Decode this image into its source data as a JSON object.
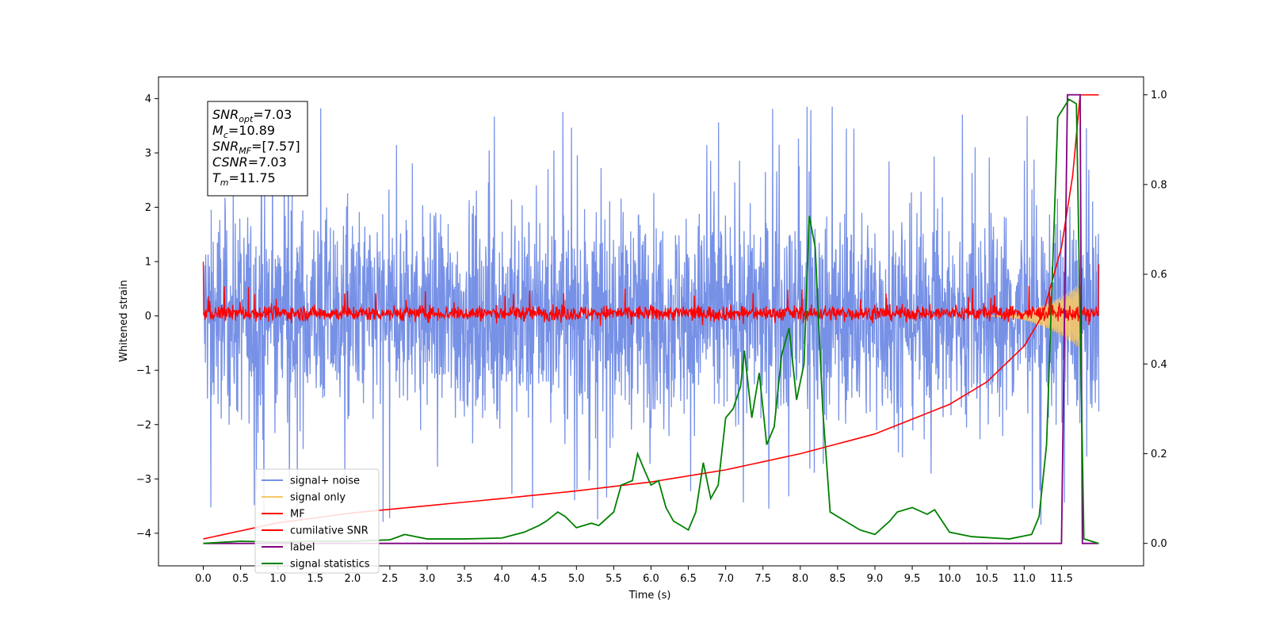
{
  "chart_data": {
    "type": "line",
    "title": "",
    "xlabel": "Time (s)",
    "ylabel": "Whitened strain",
    "ylabel_right": "",
    "xlim": [
      -0.6,
      12.6
    ],
    "ylim_left": [
      -4.6,
      4.4
    ],
    "ylim_right": [
      -0.05,
      1.04
    ],
    "x_ticks": [
      "0.0",
      "0.5",
      "1.0",
      "1.5",
      "2.0",
      "2.5",
      "3.0",
      "3.5",
      "4.0",
      "4.5",
      "5.0",
      "5.5",
      "6.0",
      "6.5",
      "7.0",
      "7.5",
      "8.0",
      "8.5",
      "9.0",
      "9.5",
      "10.0",
      "10.5",
      "11.0",
      "11.5"
    ],
    "y_ticks_left": [
      "4",
      "3",
      "2",
      "1",
      "0",
      "−1",
      "−2",
      "−3",
      "−4"
    ],
    "y_ticks_right": [
      "1.0",
      "0.8",
      "0.6",
      "0.4",
      "0.2",
      "0.0"
    ],
    "grid": false,
    "legend_position": "lower-left",
    "annotation": {
      "lines": [
        {
          "base": "SNR",
          "sub": "opt",
          "rest": "=7.03"
        },
        {
          "base": "M",
          "sub": "c",
          "rest": "=10.89"
        },
        {
          "base": "SNR",
          "sub": "MF",
          "rest": "=[7.57]"
        },
        {
          "base": "CSNR",
          "sub": "",
          "rest": "=7.03"
        },
        {
          "base": "T",
          "sub": "m",
          "rest": "=11.75"
        }
      ]
    },
    "series": [
      {
        "name": "signal+ noise",
        "color": "#7791e6",
        "axis": "left",
        "description_envelope": {
          "typical_min": -2.2,
          "typical_max": 2.3,
          "extreme_min": -3.9,
          "extreme_max": 4.0
        },
        "x_range": [
          0.0,
          12.0
        ]
      },
      {
        "name": "signal only",
        "color": "#f5c869",
        "axis": "left",
        "chirp_start": 10.5,
        "chirp_end": 11.75,
        "peak_amplitude": 0.6
      },
      {
        "name": "MF",
        "color": "#ff0000",
        "axis": "left",
        "noise_band": [
          -0.2,
          0.3
        ],
        "start_value": 1.0,
        "end_value": 0.95
      },
      {
        "name": "cumilative SNR",
        "color": "#ff0000",
        "axis": "right",
        "x": [
          0.0,
          1.0,
          2.0,
          3.0,
          4.0,
          5.0,
          6.0,
          7.0,
          8.0,
          9.0,
          10.0,
          10.5,
          11.0,
          11.25,
          11.5,
          11.65,
          11.75,
          12.0
        ],
        "y": [
          0.01,
          0.046,
          0.068,
          0.084,
          0.1,
          0.117,
          0.137,
          0.164,
          0.2,
          0.244,
          0.31,
          0.36,
          0.44,
          0.51,
          0.66,
          0.82,
          1.0,
          1.0
        ]
      },
      {
        "name": "label",
        "color": "#800080",
        "axis": "right",
        "x": [
          0.0,
          11.5,
          11.58,
          11.75,
          11.78,
          12.0
        ],
        "y": [
          0.0,
          0.0,
          1.0,
          1.0,
          0.0,
          0.0
        ]
      },
      {
        "name": "signal statistics",
        "color": "#008000",
        "axis": "right",
        "x": [
          0.0,
          0.5,
          1.0,
          1.5,
          2.0,
          2.5,
          2.7,
          3.0,
          3.5,
          4.0,
          4.3,
          4.5,
          4.6,
          4.75,
          4.85,
          5.0,
          5.2,
          5.3,
          5.5,
          5.6,
          5.75,
          5.82,
          5.92,
          6.0,
          6.1,
          6.2,
          6.3,
          6.5,
          6.6,
          6.7,
          6.8,
          6.9,
          7.0,
          7.1,
          7.2,
          7.25,
          7.35,
          7.45,
          7.55,
          7.65,
          7.75,
          7.85,
          7.95,
          8.05,
          8.12,
          8.2,
          8.3,
          8.4,
          8.5,
          8.8,
          9.0,
          9.2,
          9.3,
          9.5,
          9.7,
          9.8,
          10.0,
          10.3,
          10.8,
          11.1,
          11.2,
          11.3,
          11.45,
          11.6,
          11.7,
          11.8,
          12.0
        ],
        "y": [
          0.0,
          0.005,
          0.003,
          0.005,
          0.005,
          0.008,
          0.02,
          0.01,
          0.01,
          0.012,
          0.025,
          0.04,
          0.05,
          0.07,
          0.06,
          0.035,
          0.045,
          0.04,
          0.07,
          0.13,
          0.14,
          0.2,
          0.16,
          0.13,
          0.14,
          0.08,
          0.05,
          0.03,
          0.07,
          0.18,
          0.1,
          0.13,
          0.28,
          0.3,
          0.35,
          0.43,
          0.28,
          0.38,
          0.22,
          0.26,
          0.42,
          0.48,
          0.32,
          0.4,
          0.73,
          0.66,
          0.3,
          0.07,
          0.06,
          0.03,
          0.02,
          0.05,
          0.07,
          0.08,
          0.065,
          0.075,
          0.025,
          0.015,
          0.01,
          0.02,
          0.06,
          0.22,
          0.95,
          0.99,
          0.98,
          0.01,
          0.0
        ]
      }
    ]
  }
}
